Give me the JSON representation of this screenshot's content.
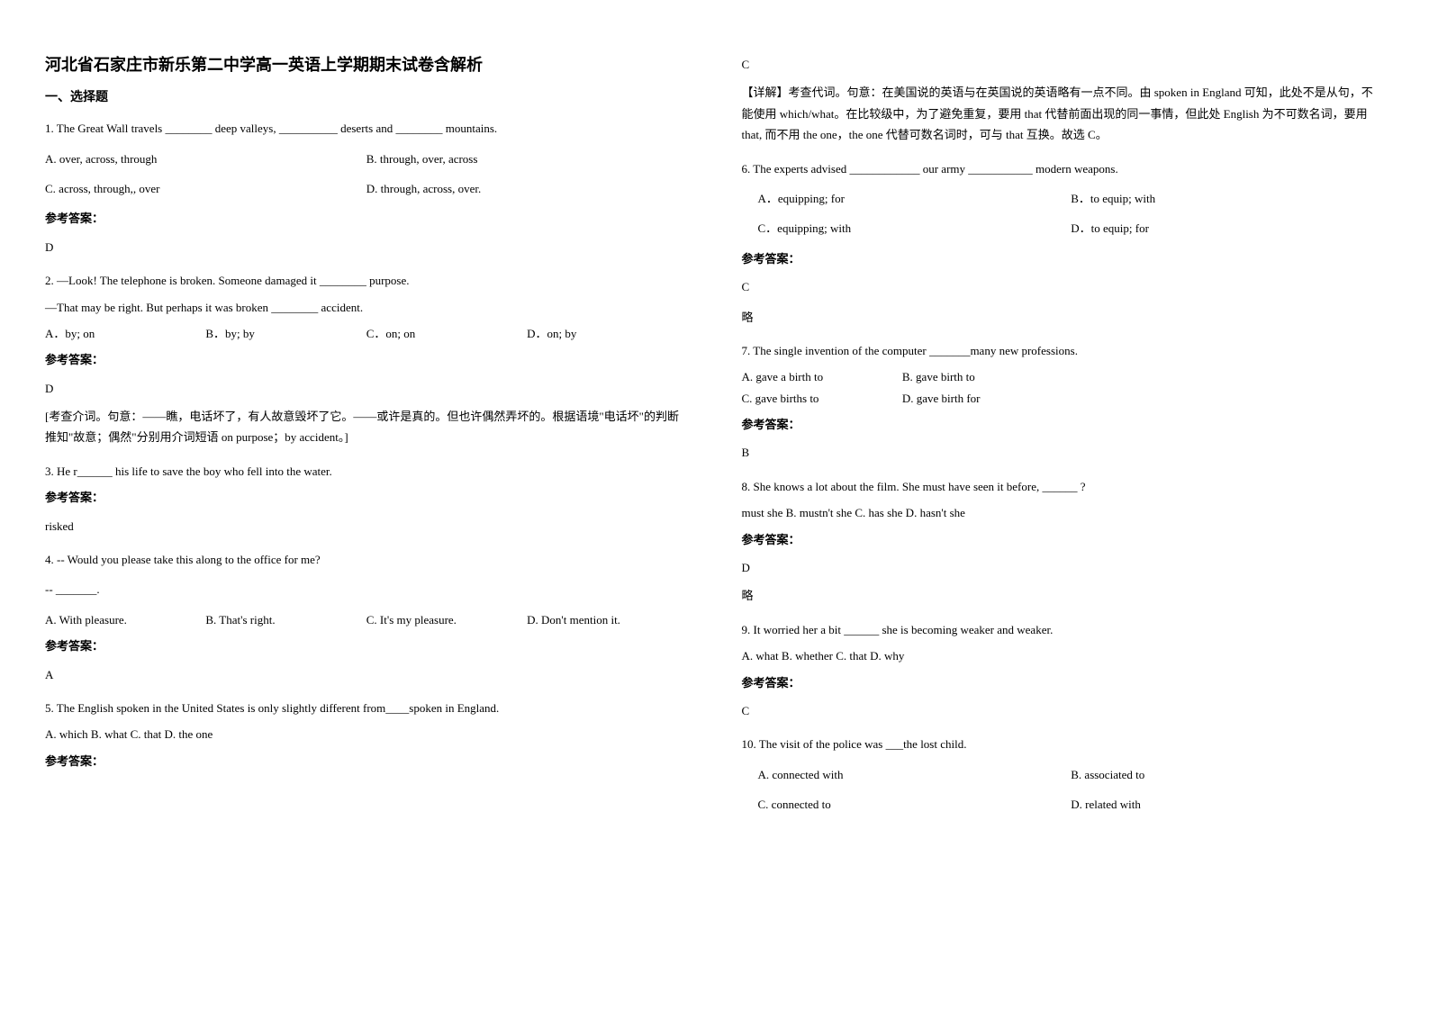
{
  "title": "河北省石家庄市新乐第二中学高一英语上学期期末试卷含解析",
  "sectionHeading": "一、选择题",
  "answerLabel": "参考答案：",
  "q1": {
    "text": "1. The Great Wall travels ________ deep valleys, __________ deserts and ________ mountains.",
    "optA": "A. over, across, through",
    "optB": "B. through, over, across",
    "optC": "C. across, through,, over",
    "optD": "D. through, across, over.",
    "answer": "D"
  },
  "q2": {
    "line1": "2. —Look! The telephone is broken. Someone damaged it ________ purpose.",
    "line2": "—That may be right. But perhaps it was broken ________ accident.",
    "optA": "A．by; on",
    "optB": "B．by; by",
    "optC": "C．on; on",
    "optD": "D．on; by",
    "answer": "D",
    "explanation": "[考查介词。句意：——瞧，电话坏了，有人故意毁坏了它。——或许是真的。但也许偶然弄坏的。根据语境\"电话坏\"的判断推知\"故意；偶然\"分别用介词短语 on purpose；by accident。]"
  },
  "q3": {
    "text": "3. He r______ his life to save the boy who fell into the water.",
    "answer": "risked"
  },
  "q4": {
    "line1": "4.      -- Would you please take this along to the office for me?",
    "line2": "   -- _______.",
    "optA": "A. With pleasure.",
    "optB": "B. That's right.",
    "optC": "C. It's my pleasure.",
    "optD": "D. Don't mention it.",
    "answer": "A"
  },
  "q5": {
    "text": "5. The English spoken in the United States is only slightly different from____spoken in England.",
    "opts": "A. which         B. what C. that  D. the one",
    "answer": "C",
    "explanation": "【详解】考查代词。句意：在美国说的英语与在英国说的英语略有一点不同。由 spoken in England 可知，此处不是从句，不能使用 which/what。在比较级中，为了避免重复，要用 that 代替前面出现的同一事情，但此处 English 为不可数名词，要用 that, 而不用 the one，the one 代替可数名词时，可与 that 互换。故选 C。"
  },
  "q6": {
    "text": "6. The experts advised ____________ our army ___________ modern weapons.",
    "optA": "A．equipping; for",
    "optB": "B．to equip; with",
    "optC": "C．equipping; with",
    "optD": "D．to equip; for",
    "answer": "C",
    "extra": "略"
  },
  "q7": {
    "text": "7. The single invention of the computer _______many new professions.",
    "optA": "A. gave a birth to",
    "optB": "B. gave birth to",
    "optC": "C. gave births to",
    "optD": "D. gave birth for",
    "answer": "B"
  },
  "q8": {
    "text": "8. She knows a lot about the film. She must have seen it before, ______ ?",
    "opts": "must she            B. mustn't she           C. has she        D. hasn't she",
    "answer": "D",
    "extra": "略"
  },
  "q9": {
    "text": "9. It worried her a bit ______ she is becoming weaker and weaker.",
    "opts": "   A. what    B. whether  C. that    D. why",
    "answer": "C"
  },
  "q10": {
    "text": "10. The visit of the police was ___the lost child.",
    "optA": "A. connected with",
    "optB": "B. associated to",
    "optC": "C. connected to",
    "optD": "D. related with"
  }
}
